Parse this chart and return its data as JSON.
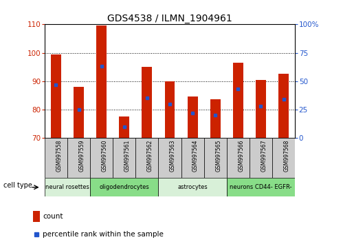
{
  "title": "GDS4538 / ILMN_1904961",
  "samples": [
    "GSM997558",
    "GSM997559",
    "GSM997560",
    "GSM997561",
    "GSM997562",
    "GSM997563",
    "GSM997564",
    "GSM997565",
    "GSM997566",
    "GSM997567",
    "GSM997568"
  ],
  "count_values": [
    99.5,
    88.0,
    109.5,
    77.5,
    95.0,
    90.0,
    84.5,
    83.5,
    96.5,
    90.5,
    92.5
  ],
  "percentile_values": [
    47,
    25,
    63,
    10,
    35,
    30,
    22,
    20,
    43,
    28,
    34
  ],
  "bar_bottom": 70,
  "ylim_left": [
    70,
    110
  ],
  "ylim_right": [
    0,
    100
  ],
  "yticks_left": [
    70,
    80,
    90,
    100,
    110
  ],
  "yticks_right": [
    0,
    25,
    50,
    75,
    100
  ],
  "yticklabels_right": [
    "0",
    "25",
    "50",
    "75",
    "100%"
  ],
  "bar_color": "#cc2200",
  "percentile_color": "#2255cc",
  "cell_type_groups": [
    {
      "label": "neural rosettes",
      "start": 0,
      "end": 2,
      "color": "#d8f0d8"
    },
    {
      "label": "oligodendrocytes",
      "start": 2,
      "end": 5,
      "color": "#88dd88"
    },
    {
      "label": "astrocytes",
      "start": 5,
      "end": 8,
      "color": "#d8f0d8"
    },
    {
      "label": "neurons CD44- EGFR-",
      "start": 8,
      "end": 11,
      "color": "#88dd88"
    }
  ],
  "cell_type_label": "cell type",
  "legend_count_label": "count",
  "legend_percentile_label": "percentile rank within the sample",
  "tick_label_color_left": "#cc2200",
  "tick_label_color_right": "#2255cc",
  "sample_box_color": "#cccccc"
}
